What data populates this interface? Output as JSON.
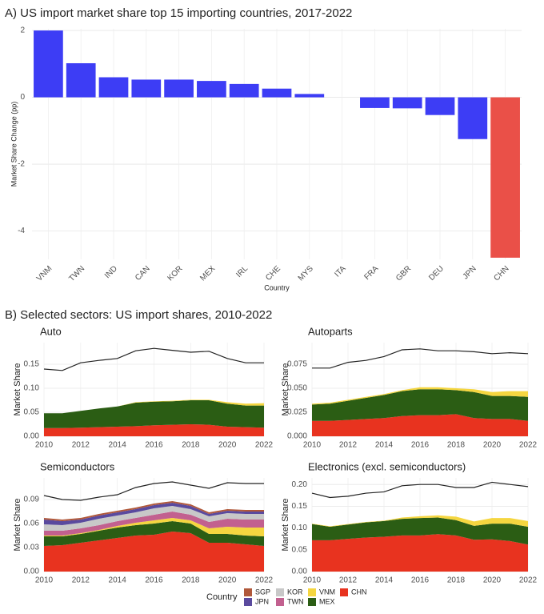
{
  "chart_data": [
    {
      "type": "bar",
      "title": "A) US import market share top 15 importing countries, 2017-2022",
      "xlabel": "Country",
      "ylabel": "Market Share Change (pp)",
      "categories": [
        "VNM",
        "TWN",
        "IND",
        "CAN",
        "KOR",
        "MEX",
        "IRL",
        "CHE",
        "MYS",
        "ITA",
        "FRA",
        "GBR",
        "DEU",
        "JPN",
        "CHN"
      ],
      "values": [
        2.0,
        1.02,
        0.6,
        0.53,
        0.53,
        0.49,
        0.4,
        0.26,
        0.1,
        0.0,
        -0.32,
        -0.33,
        -0.53,
        -1.25,
        -4.8
      ],
      "colors": [
        "#3d3df5",
        "#3d3df5",
        "#3d3df5",
        "#3d3df5",
        "#3d3df5",
        "#3d3df5",
        "#3d3df5",
        "#3d3df5",
        "#3d3df5",
        "#3d3df5",
        "#3d3df5",
        "#3d3df5",
        "#3d3df5",
        "#3d3df5",
        "#ea5048"
      ],
      "ylim": [
        -4.85,
        2.05
      ],
      "yticks": [
        -4,
        -2,
        0,
        2
      ],
      "grid": true
    },
    {
      "type": "area",
      "title": "Auto",
      "ylabel": "Market Share",
      "x": [
        2010,
        2011,
        2012,
        2013,
        2014,
        2015,
        2016,
        2017,
        2018,
        2019,
        2020,
        2021,
        2022
      ],
      "xlim": [
        2010,
        2022
      ],
      "xticks": [
        2010,
        2012,
        2014,
        2016,
        2018,
        2020,
        2022
      ],
      "ylim": [
        0,
        0.195
      ],
      "yticks": [
        {
          "value": 0,
          "label": "0.00"
        },
        {
          "value": 0.05,
          "label": "0.05"
        },
        {
          "value": 0.1,
          "label": "0.10"
        },
        {
          "value": 0.15,
          "label": "0.15"
        }
      ],
      "series": [
        {
          "values": [
            0,
            0,
            0,
            0,
            0,
            0,
            0,
            0,
            0,
            0,
            0,
            0,
            0
          ]
        },
        {
          "values": [
            0,
            0,
            0,
            0,
            0,
            0,
            0,
            0,
            0,
            0,
            0,
            0,
            0
          ]
        },
        {
          "values": [
            0,
            0,
            0,
            0,
            0,
            0,
            0,
            0,
            0,
            0,
            0,
            0,
            0
          ]
        },
        {
          "values": [
            0,
            0,
            0,
            0,
            0,
            0,
            0,
            0,
            0,
            0,
            0,
            0,
            0
          ]
        },
        {
          "values": [
            0,
            0,
            0,
            0,
            0,
            0.001,
            0.001,
            0.001,
            0.001,
            0.001,
            0.003,
            0.004,
            0.005
          ]
        },
        {
          "values": [
            0.031,
            0.031,
            0.035,
            0.039,
            0.042,
            0.049,
            0.049,
            0.049,
            0.05,
            0.051,
            0.048,
            0.045,
            0.046
          ]
        },
        {
          "values": [
            0.017,
            0.017,
            0.018,
            0.019,
            0.02,
            0.021,
            0.023,
            0.024,
            0.025,
            0.024,
            0.02,
            0.019,
            0.018
          ]
        }
      ],
      "line": [
        0.14,
        0.137,
        0.153,
        0.158,
        0.162,
        0.178,
        0.183,
        0.179,
        0.175,
        0.177,
        0.162,
        0.153,
        0.153
      ],
      "line_color": "#222222",
      "grid": true
    },
    {
      "type": "area",
      "title": "Autoparts",
      "ylabel": "Market Share",
      "x": [
        2010,
        2011,
        2012,
        2013,
        2014,
        2015,
        2016,
        2017,
        2018,
        2019,
        2020,
        2021,
        2022
      ],
      "xlim": [
        2010,
        2022
      ],
      "xticks": [
        2010,
        2012,
        2014,
        2016,
        2018,
        2020,
        2022
      ],
      "ylim": [
        0,
        0.0975
      ],
      "yticks": [
        {
          "value": 0,
          "label": "0.000"
        },
        {
          "value": 0.025,
          "label": "0.025"
        },
        {
          "value": 0.05,
          "label": "0.050"
        },
        {
          "value": 0.075,
          "label": "0.075"
        }
      ],
      "series": [
        {
          "values": [
            0,
            0,
            0,
            0,
            0,
            0,
            0,
            0,
            0,
            0,
            0,
            0,
            0
          ]
        },
        {
          "values": [
            0,
            0,
            0,
            0,
            0,
            0,
            0,
            0,
            0,
            0,
            0,
            0,
            0
          ]
        },
        {
          "values": [
            0,
            0,
            0,
            0,
            0,
            0,
            0,
            0,
            0,
            0,
            0,
            0,
            0
          ]
        },
        {
          "values": [
            0,
            0,
            0,
            0,
            0,
            0,
            0,
            0,
            0,
            0,
            0,
            0,
            0
          ]
        },
        {
          "values": [
            0.001,
            0.001,
            0.001,
            0.001,
            0.001,
            0.001,
            0.002,
            0.002,
            0.002,
            0.003,
            0.004,
            0.005,
            0.006
          ]
        },
        {
          "values": [
            0.017,
            0.018,
            0.02,
            0.022,
            0.024,
            0.026,
            0.027,
            0.027,
            0.025,
            0.027,
            0.024,
            0.024,
            0.025
          ]
        },
        {
          "values": [
            0.016,
            0.016,
            0.017,
            0.018,
            0.019,
            0.021,
            0.022,
            0.022,
            0.023,
            0.019,
            0.018,
            0.018,
            0.016
          ]
        }
      ],
      "line": [
        0.071,
        0.071,
        0.077,
        0.079,
        0.083,
        0.09,
        0.091,
        0.089,
        0.089,
        0.088,
        0.086,
        0.087,
        0.086
      ],
      "line_color": "#222222",
      "grid": true
    },
    {
      "type": "area",
      "title": "Semiconductors",
      "ylabel": "Market Share",
      "x": [
        2010,
        2011,
        2012,
        2013,
        2014,
        2015,
        2016,
        2017,
        2018,
        2019,
        2020,
        2021,
        2022
      ],
      "xlim": [
        2010,
        2022
      ],
      "xticks": [
        2010,
        2012,
        2014,
        2016,
        2018,
        2020,
        2022
      ],
      "ylim": [
        0,
        0.117
      ],
      "yticks": [
        {
          "value": 0,
          "label": "0.00"
        },
        {
          "value": 0.03,
          "label": "0.03"
        },
        {
          "value": 0.06,
          "label": "0.06"
        },
        {
          "value": 0.09,
          "label": "0.09"
        }
      ],
      "series": [
        {
          "values": [
            0.002,
            0.002,
            0.002,
            0.002,
            0.002,
            0.002,
            0.002,
            0.002,
            0.002,
            0.002,
            0.002,
            0.002,
            0.002
          ]
        },
        {
          "values": [
            0.006,
            0.005,
            0.004,
            0.004,
            0.004,
            0.004,
            0.004,
            0.004,
            0.004,
            0.003,
            0.003,
            0.003,
            0.003
          ]
        },
        {
          "values": [
            0.008,
            0.007,
            0.007,
            0.008,
            0.007,
            0.007,
            0.008,
            0.007,
            0.007,
            0.007,
            0.007,
            0.007,
            0.007
          ]
        },
        {
          "values": [
            0.006,
            0.006,
            0.006,
            0.006,
            0.006,
            0.006,
            0.007,
            0.008,
            0.007,
            0.008,
            0.01,
            0.01,
            0.01
          ]
        },
        {
          "values": [
            0.001,
            0.001,
            0.001,
            0.001,
            0.002,
            0.003,
            0.004,
            0.004,
            0.004,
            0.007,
            0.009,
            0.01,
            0.011
          ]
        },
        {
          "values": [
            0.012,
            0.011,
            0.011,
            0.012,
            0.013,
            0.013,
            0.014,
            0.013,
            0.012,
            0.011,
            0.011,
            0.011,
            0.012
          ]
        },
        {
          "values": [
            0.032,
            0.033,
            0.036,
            0.039,
            0.042,
            0.045,
            0.046,
            0.05,
            0.048,
            0.036,
            0.036,
            0.034,
            0.032
          ]
        }
      ],
      "line": [
        0.095,
        0.09,
        0.089,
        0.093,
        0.096,
        0.105,
        0.11,
        0.112,
        0.108,
        0.104,
        0.111,
        0.11,
        0.11
      ],
      "line_color": "#222222",
      "grid": true
    },
    {
      "type": "area",
      "title": "Electronics (excl. semiconductors)",
      "ylabel": "Market Share",
      "x": [
        2010,
        2011,
        2012,
        2013,
        2014,
        2015,
        2016,
        2017,
        2018,
        2019,
        2020,
        2021,
        2022
      ],
      "xlim": [
        2010,
        2022
      ],
      "xticks": [
        2010,
        2012,
        2014,
        2016,
        2018,
        2020,
        2022
      ],
      "ylim": [
        0,
        0.215
      ],
      "yticks": [
        {
          "value": 0,
          "label": "0.00"
        },
        {
          "value": 0.05,
          "label": "0.05"
        },
        {
          "value": 0.1,
          "label": "0.10"
        },
        {
          "value": 0.15,
          "label": "0.15"
        },
        {
          "value": 0.2,
          "label": "0.20"
        }
      ],
      "series": [
        {
          "values": [
            0,
            0,
            0,
            0,
            0,
            0,
            0,
            0,
            0,
            0,
            0,
            0,
            0
          ]
        },
        {
          "values": [
            0,
            0,
            0,
            0,
            0,
            0,
            0,
            0,
            0,
            0,
            0,
            0,
            0
          ]
        },
        {
          "values": [
            0,
            0,
            0,
            0,
            0,
            0,
            0,
            0,
            0,
            0,
            0,
            0,
            0
          ]
        },
        {
          "values": [
            0,
            0,
            0,
            0,
            0,
            0,
            0,
            0,
            0,
            0,
            0,
            0,
            0
          ]
        },
        {
          "values": [
            0.001,
            0.001,
            0.001,
            0.001,
            0.001,
            0.003,
            0.004,
            0.005,
            0.008,
            0.01,
            0.013,
            0.013,
            0.013
          ]
        },
        {
          "values": [
            0.037,
            0.031,
            0.033,
            0.035,
            0.036,
            0.038,
            0.04,
            0.038,
            0.035,
            0.032,
            0.036,
            0.04,
            0.041
          ]
        },
        {
          "values": [
            0.072,
            0.072,
            0.075,
            0.078,
            0.08,
            0.083,
            0.083,
            0.086,
            0.083,
            0.073,
            0.074,
            0.07,
            0.062
          ]
        }
      ],
      "line": [
        0.18,
        0.17,
        0.173,
        0.18,
        0.183,
        0.197,
        0.2,
        0.2,
        0.193,
        0.193,
        0.205,
        0.2,
        0.195
      ],
      "line_color": "#222222",
      "grid": true
    }
  ],
  "section_b_title": "B) Selected sectors: US import shares, 2010-2022",
  "legend": {
    "title": "Country",
    "entries": [
      {
        "name": "SGP",
        "color": "#b0583a"
      },
      {
        "name": "JPN",
        "color": "#5a4a9e"
      },
      {
        "name": "KOR",
        "color": "#c8c8c8"
      },
      {
        "name": "TWN",
        "color": "#c2608f"
      },
      {
        "name": "VNM",
        "color": "#f5d640"
      },
      {
        "name": "MEX",
        "color": "#2b5d14"
      },
      {
        "name": "CHN",
        "color": "#e8331f"
      }
    ]
  }
}
